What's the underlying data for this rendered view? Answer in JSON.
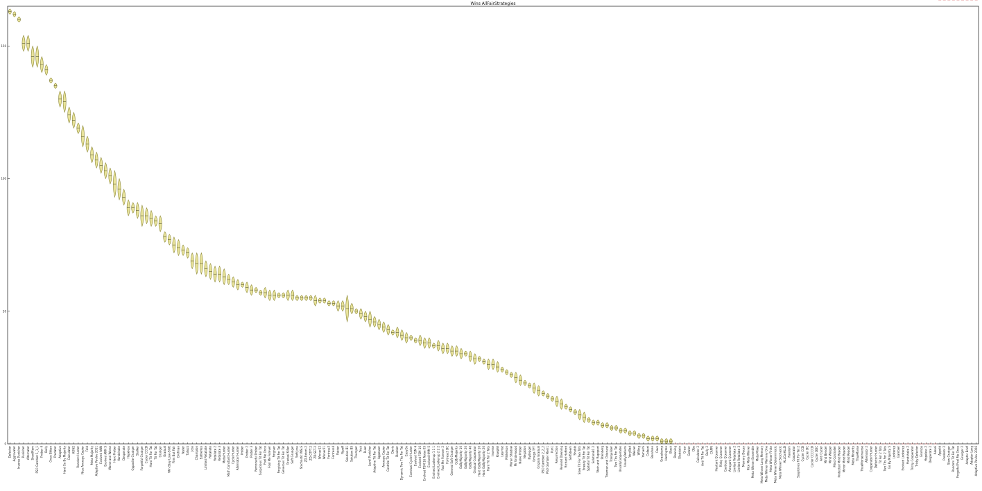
{
  "chart_data": {
    "type": "violin",
    "title": "Wins AllFairStrategies",
    "xlabel": "",
    "ylabel": "",
    "ylim": [
      0,
      165
    ],
    "yticks": [
      0,
      50,
      100,
      150
    ],
    "grid": false,
    "colors": {
      "violin_fill": "#e8e39b",
      "violin_edge": "#8f8a3a",
      "null_marker": "#e08080"
    },
    "categories": [
      "Defector",
      "Aggravater",
      "Inverse Punisher",
      "Punisher",
      "Alternator",
      "ShortMem",
      "PSO Gambler 1_1_1",
      "Prober 4",
      "Bully",
      "Once Bitten",
      "Predator",
      "Adaptive",
      "Hard Go By Majority",
      "Calculator",
      "AON2",
      "Random Hunter",
      "Nice Average Copier",
      "Feld",
      "Meta Majority",
      "Adaptive Pavlov 2011",
      "Evolved ANN",
      "Evolved ANN 5",
      "Worse and Worse",
      "Hard Prober",
      "Handshake",
      "Desperate",
      "Hopeless",
      "Opposite Grudger",
      "Stalker",
      "Forgetful Grudger",
      "Cycler CCCD",
      "Hard Tit For Tat",
      "Tit For Tat",
      "Grudger",
      "Gradual",
      "Win-Stay Lose-Shift",
      "Firm But Fair",
      "Grofman",
      "Tester",
      "Tullock",
      "Joss",
      "Champion",
      "Eatherley",
      "Limited Retaliate",
      "Retaliate",
      "Retaliate 2",
      "Retaliate 3",
      "Meta Hunter",
      "Math Constant Hunter",
      "Cycle Hunter",
      "Alternator Hunter",
      "Prober",
      "Prober 2",
      "Prober 3",
      "Remorseful Prober",
      "Suspicious Tit For Tat",
      "Fool Me Once",
      "Fool Me Forever",
      "Forgiver",
      "Forgiving Tit For Tat",
      "Generous Tit For Tat",
      "Gradual Killer",
      "Soft Grudger",
      "Soft Joss",
      "Stochastic WSLS",
      "ZD-Extort-2",
      "ZD-GTFT-2",
      "ZD-SET-2",
      "Winner12",
      "Winner21",
      "Fortress3",
      "Fortress4",
      "Raider",
      "Ripoff",
      "Solution B1",
      "Solution B5",
      "Thumper",
      "Trick",
      "Ruler",
      "Level Punisher",
      "Adaptive Tit For Tat",
      "Appeaser",
      "Average Copier",
      "Contrite Tit For Tat",
      "Davis",
      "Doubler",
      "Dynamic Two Tits For Tat",
      "EasyGo",
      "Eventual Cycle Hunter",
      "Evolved FSM 4",
      "Evolved FSM 16",
      "Evolved FSM 16 Noise 05",
      "Evolved HMM 5",
      "Evolved Lookerup 1 1 1",
      "Evolved Lookerup 2 2 2",
      "Fool Me Forever 2",
      "Fortress3 DC",
      "General Soft Grudger",
      "GoByMajority",
      "GoByMajority 10",
      "GoByMajority 20",
      "GoByMajority 40",
      "Gradual Cooperator",
      "Hard GoByMajority 10",
      "Hard GoByMajority 20",
      "Hard Tit For 2 Tats",
      "Inverse",
      "Kluepfel",
      "Leyvraz",
      "Mikkelson",
      "Moran Shadow",
      "Mr Underwood",
      "Naive Prober",
      "Negation",
      "Nydegger",
      "Omega TFT",
      "Original Gradual",
      "PSO Gambler 2_2_2",
      "PSO Gambler Mem1",
      "Pun1",
      "Resurrection",
      "Revised Downing",
      "Richard Hufford",
      "SelfSteem",
      "Shubik",
      "Slow Tit For Two Tats",
      "Sneaky Tit For Tat",
      "Spiteful Tit For Tat",
      "SolutionB1 2",
      "Stein and Rapoport",
      "Steinberg",
      "Tideman and Chieruzzi",
      "Tranquilizer",
      "Two Tits For Tat",
      "UsuallyCooperates",
      "UsuallyDefects",
      "VeryBad",
      "Weiner",
      "Willing",
      "Yamachi",
      "Colbert",
      "Borufsen",
      "Cave",
      "Graaskamp",
      "Harrington",
      "Black",
      "Downing",
      "Gladstein",
      "Grasr",
      "Getzler",
      "Dbs",
      "Calculator 2",
      "Anti Tit For Tat",
      "Bully 2",
      "CAPRI",
      "Hesitant QLearner",
      "Risky QLearner",
      "Cautious QLearner",
      "Arrogant QLearner",
      "Limited Retaliate 2",
      "Limited Retaliate 3",
      "Memory Decay",
      "Nice Meta Winner",
      "Meta Winner Ensemble",
      "Meta Mixer",
      "Meta Winner Long Memory",
      "Meta Winner Memory One",
      "Meta Winner Finite",
      "Meta Winner Deterministic",
      "Meta Winner Stochastic",
      "ALLCorALLD",
      "Random",
      "Cooperator",
      "Suspicious Tit For Tat 2",
      "Cycler CCD",
      "Cycler DC",
      "Cycler CCCCCD",
      "Cycler DDC",
      "Anti Cycler",
      "Mind Bender",
      "Mind Warper",
      "Mind Controller",
      "Protected Mind Reader",
      "Mirror Mind Reader",
      "Mind Reader",
      "Meta Minority",
      "ThueMorse",
      "ThueMorseInverse",
      "Alternator 2",
      "Cooperator Hunter",
      "Defector Hunter",
      "Tit For 2 Tats",
      "Two Tits For 2 Tats",
      "Go By Majority 5",
      "Lookerup",
      "Gambler",
      "Evolved Lookerup",
      "Handshake 2",
      "Tricky Cooperator",
      "Tricky Defector",
      "Grumpy",
      "Hopeless 2",
      "Desperate 2",
      "Alexei",
      "Appold",
      "Predator 2",
      "Slow Grudger",
      "Random Tit For Tat",
      "Forgetful Fool Me Once",
      "Grudger 2",
      "Adaptor Brief",
      "Adaptor Long",
      "Adaptive Pavlov 2006"
    ],
    "medians": [
      163,
      162,
      160,
      151,
      151,
      146,
      146,
      143,
      141,
      137,
      135,
      130,
      129,
      124,
      122,
      119,
      116,
      113,
      109,
      107,
      105,
      103,
      101,
      98,
      96,
      93,
      89,
      89,
      88,
      86,
      86,
      85,
      84,
      83,
      78,
      77,
      75,
      74,
      73,
      72,
      69,
      68,
      68,
      66,
      65,
      64,
      64,
      63,
      62,
      61,
      60,
      60,
      59,
      58,
      58,
      57,
      57,
      56,
      56,
      56,
      56,
      56,
      56,
      55,
      55,
      55,
      55,
      54,
      54,
      54,
      53,
      53,
      52,
      52,
      51,
      51,
      50,
      49,
      48,
      47,
      46,
      45,
      44,
      43,
      42,
      42,
      41,
      40,
      40,
      39,
      39,
      38,
      38,
      37,
      37,
      36,
      36,
      35,
      35,
      34,
      34,
      33,
      32,
      32,
      31,
      30,
      30,
      29,
      28,
      27,
      26,
      25,
      24,
      23,
      22,
      21,
      20,
      19,
      18,
      17,
      16,
      15,
      14,
      13,
      12,
      11,
      10,
      9,
      8,
      8,
      7,
      7,
      6,
      6,
      5,
      5,
      4,
      4,
      3,
      3,
      2,
      2,
      2,
      1,
      1,
      1,
      0,
      0,
      0,
      0,
      0,
      0,
      0,
      0,
      0,
      0,
      0,
      0,
      0,
      0,
      0,
      0,
      0,
      0,
      0,
      0,
      0,
      0,
      0,
      0,
      0,
      0,
      0,
      0,
      0,
      0,
      0,
      0,
      0,
      0,
      0,
      0,
      0,
      0,
      0,
      0,
      0,
      0,
      0,
      0,
      0,
      0,
      0,
      0,
      0,
      0,
      0,
      0,
      0,
      0,
      0,
      0,
      0,
      0
    ],
    "spreads": [
      1,
      1,
      1,
      3,
      3,
      4,
      4,
      3,
      2,
      1,
      1,
      3,
      4,
      3,
      3,
      2,
      4,
      3,
      3,
      3,
      3,
      3,
      3,
      5,
      4,
      3,
      3,
      2,
      3,
      4,
      3,
      3,
      2,
      3,
      2,
      2,
      3,
      3,
      2,
      2,
      3,
      4,
      4,
      3,
      3,
      3,
      3,
      3,
      2,
      2,
      2,
      1,
      2,
      2,
      1,
      1,
      2,
      2,
      2,
      1,
      1,
      2,
      2,
      1,
      1,
      1,
      1,
      2,
      1,
      1,
      1,
      1,
      2,
      2,
      5,
      2,
      1,
      2,
      2,
      3,
      2,
      2,
      2,
      2,
      1,
      2,
      2,
      2,
      1,
      1,
      2,
      2,
      2,
      1,
      2,
      2,
      2,
      2,
      2,
      2,
      1,
      2,
      2,
      1,
      1,
      2,
      2,
      2,
      1,
      1,
      1,
      2,
      2,
      1,
      1,
      2,
      2,
      1,
      1,
      1,
      2,
      2,
      1,
      1,
      1,
      2,
      2,
      1,
      1,
      1,
      1,
      1,
      1,
      1,
      1,
      1,
      1,
      1,
      1,
      1,
      1,
      1,
      1,
      1,
      1,
      1,
      0,
      0,
      0,
      0,
      0,
      0,
      0,
      0,
      0,
      0,
      0,
      0,
      0,
      0,
      0,
      0,
      0,
      0,
      0,
      0,
      0,
      0,
      0,
      0,
      0,
      0,
      0,
      0,
      0,
      0,
      0,
      0,
      0,
      0,
      0,
      0,
      0,
      0,
      0,
      0,
      0,
      0,
      0,
      0,
      0,
      0,
      0,
      0,
      0,
      0,
      0,
      0,
      0,
      0,
      0,
      0,
      0
    ]
  }
}
